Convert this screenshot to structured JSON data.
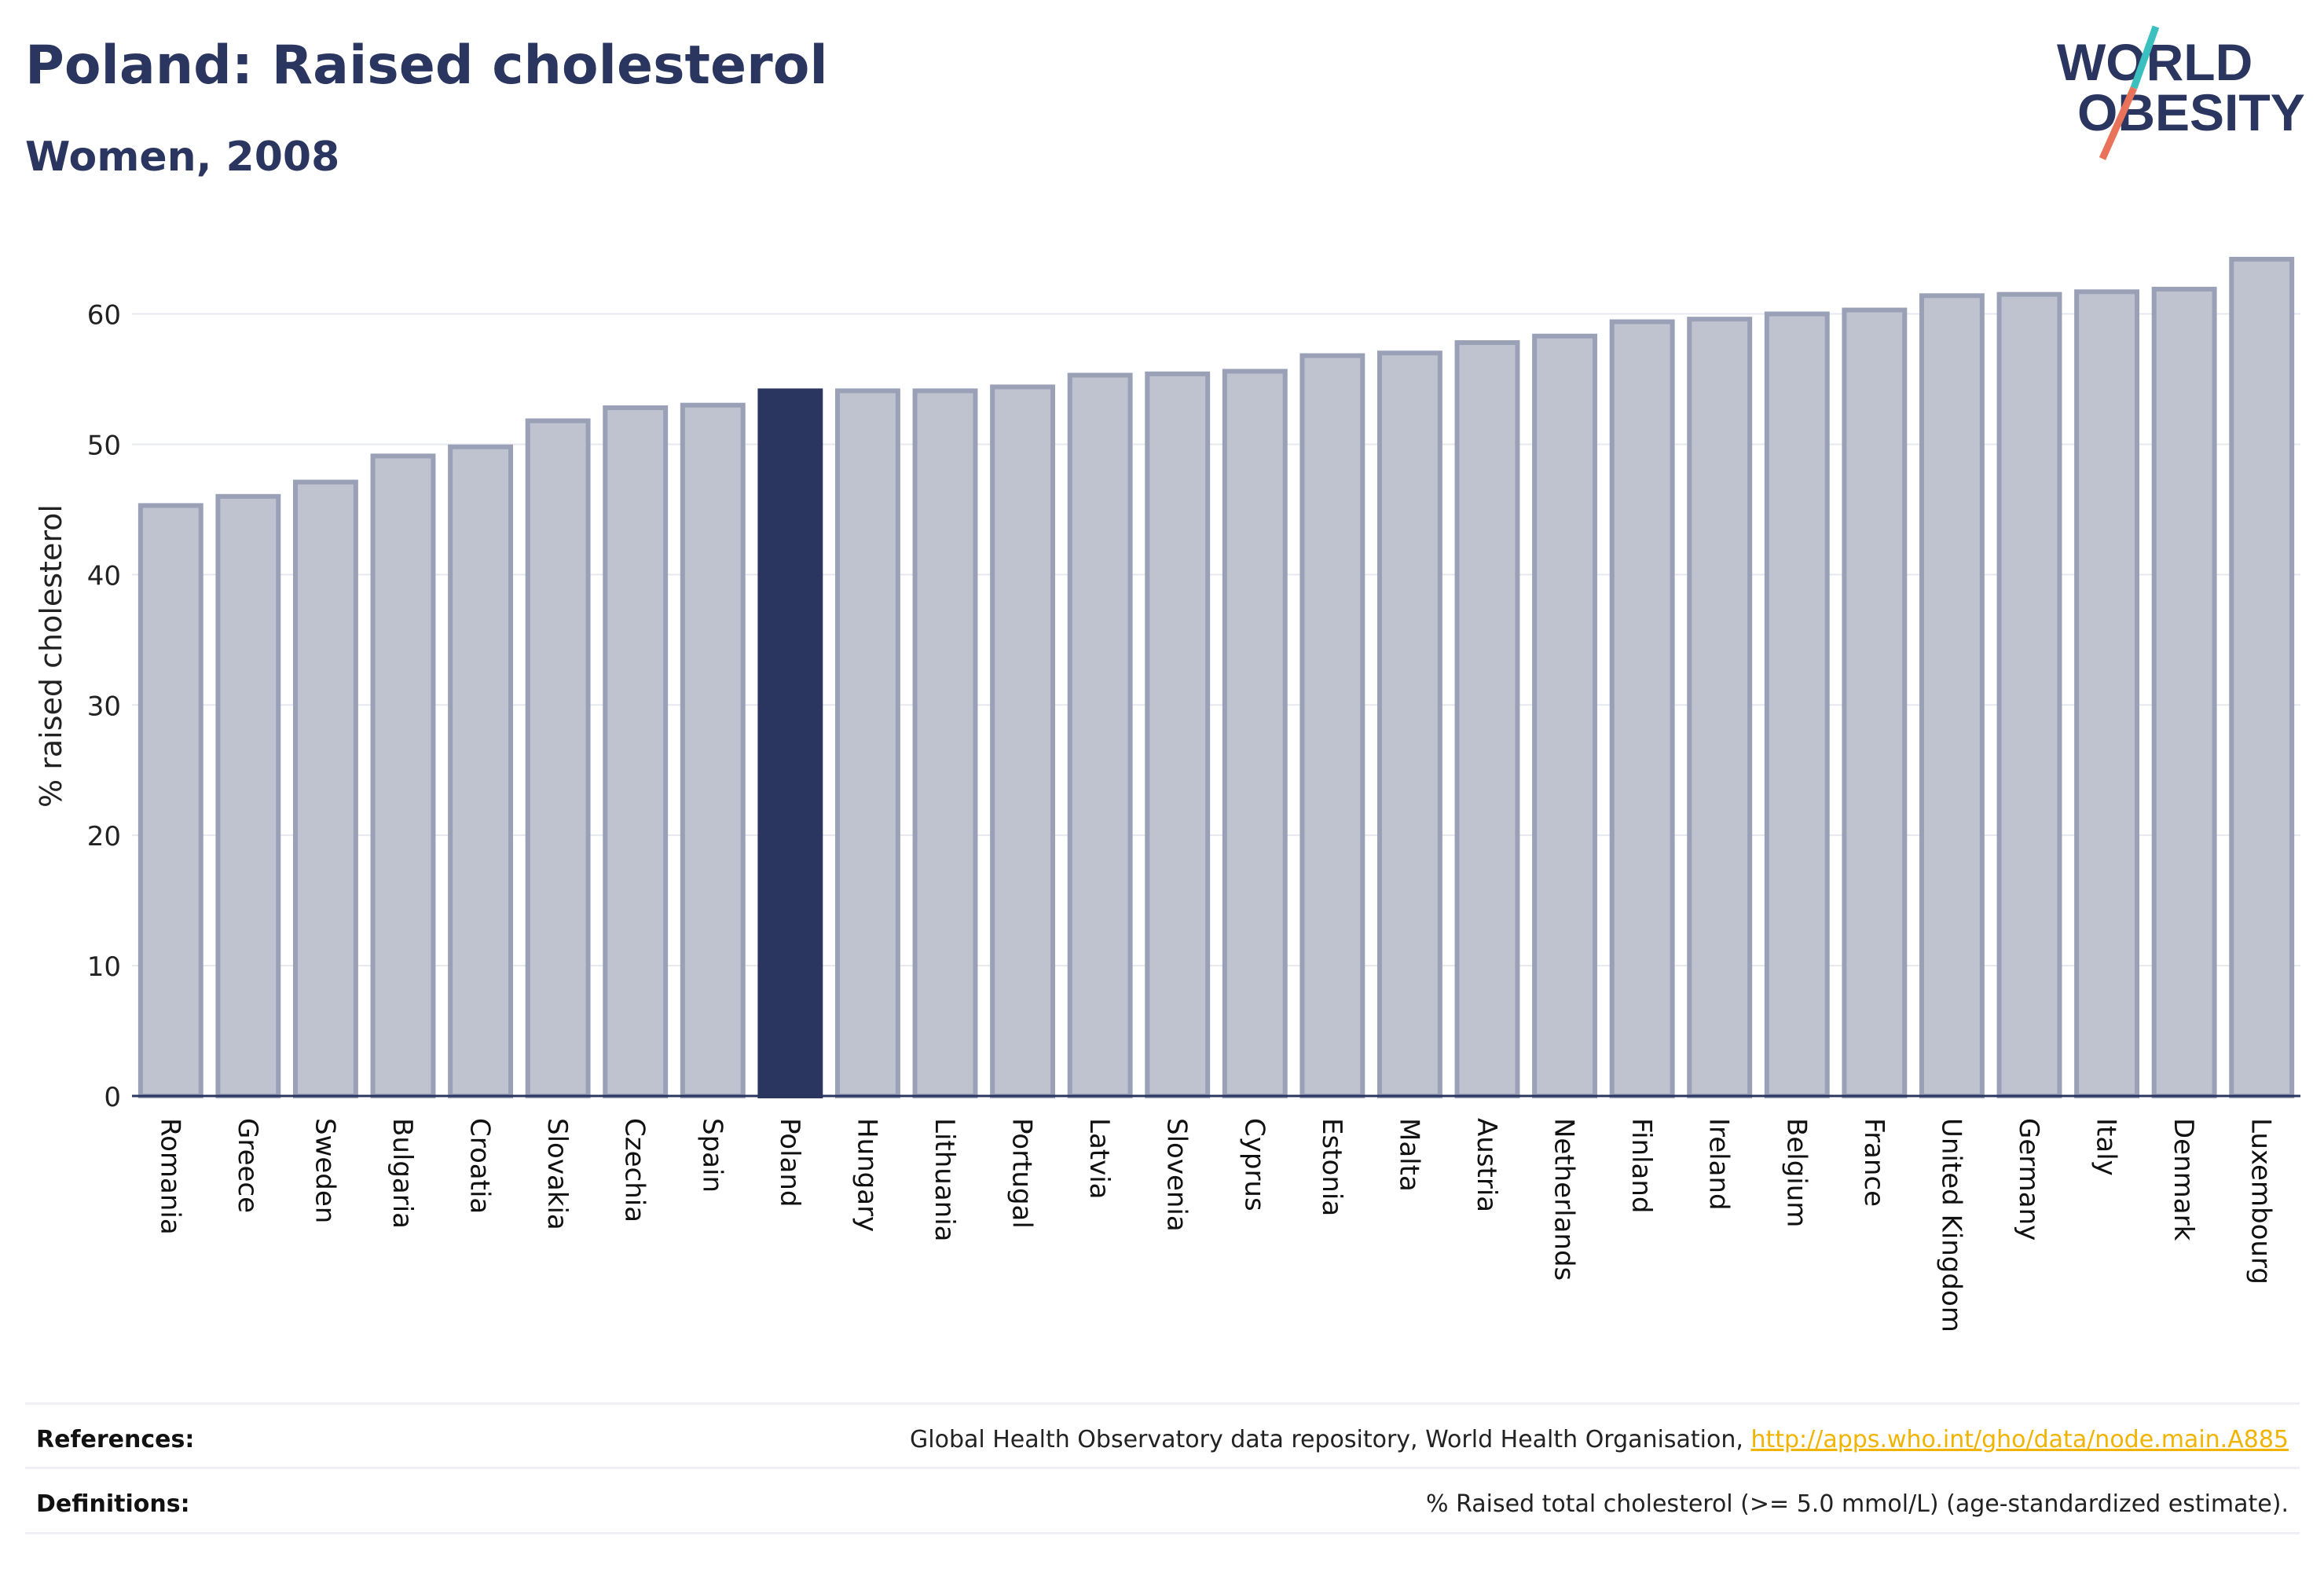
{
  "header": {
    "title": "Poland: Raised cholesterol",
    "subtitle": "Women, 2008"
  },
  "logo": {
    "line1": "WORLD",
    "line2": "OBESITY"
  },
  "colors": {
    "highlight": "#2a3560",
    "bar_fill": "#bfc2cf",
    "bar_stroke": "#9aa0b6",
    "accent_teal": "#3bbfbf",
    "accent_coral": "#e8735a"
  },
  "chart_data": {
    "type": "bar",
    "ylabel": "% raised cholesterol",
    "xlabel": "",
    "ylim": [
      0,
      66
    ],
    "yticks": [
      0,
      10,
      20,
      30,
      40,
      50,
      60
    ],
    "grid": true,
    "highlight": "Poland",
    "categories": [
      "Romania",
      "Greece",
      "Sweden",
      "Bulgaria",
      "Croatia",
      "Slovakia",
      "Czechia",
      "Spain",
      "Poland",
      "Hungary",
      "Lithuania",
      "Portugal",
      "Latvia",
      "Slovenia",
      "Cyprus",
      "Estonia",
      "Malta",
      "Austria",
      "Netherlands",
      "Finland",
      "Ireland",
      "Belgium",
      "France",
      "United Kingdom",
      "Germany",
      "Italy",
      "Denmark",
      "Luxembourg"
    ],
    "values": [
      45.3,
      46.0,
      47.1,
      49.1,
      49.8,
      51.8,
      52.8,
      53.0,
      54.1,
      54.1,
      54.1,
      54.4,
      55.3,
      55.4,
      55.6,
      56.8,
      57.0,
      57.8,
      58.3,
      59.4,
      59.6,
      60.0,
      60.3,
      61.4,
      61.5,
      61.7,
      61.9,
      64.2
    ]
  },
  "footer": {
    "references_label": "References:",
    "references_text": "Global Health Observatory data repository, World Health Organisation, ",
    "references_link": "http://apps.who.int/gho/data/node.main.A885",
    "definitions_label": "Definitions:",
    "definitions_text": "% Raised total cholesterol (>= 5.0 mmol/L) (age-standardized estimate)."
  }
}
